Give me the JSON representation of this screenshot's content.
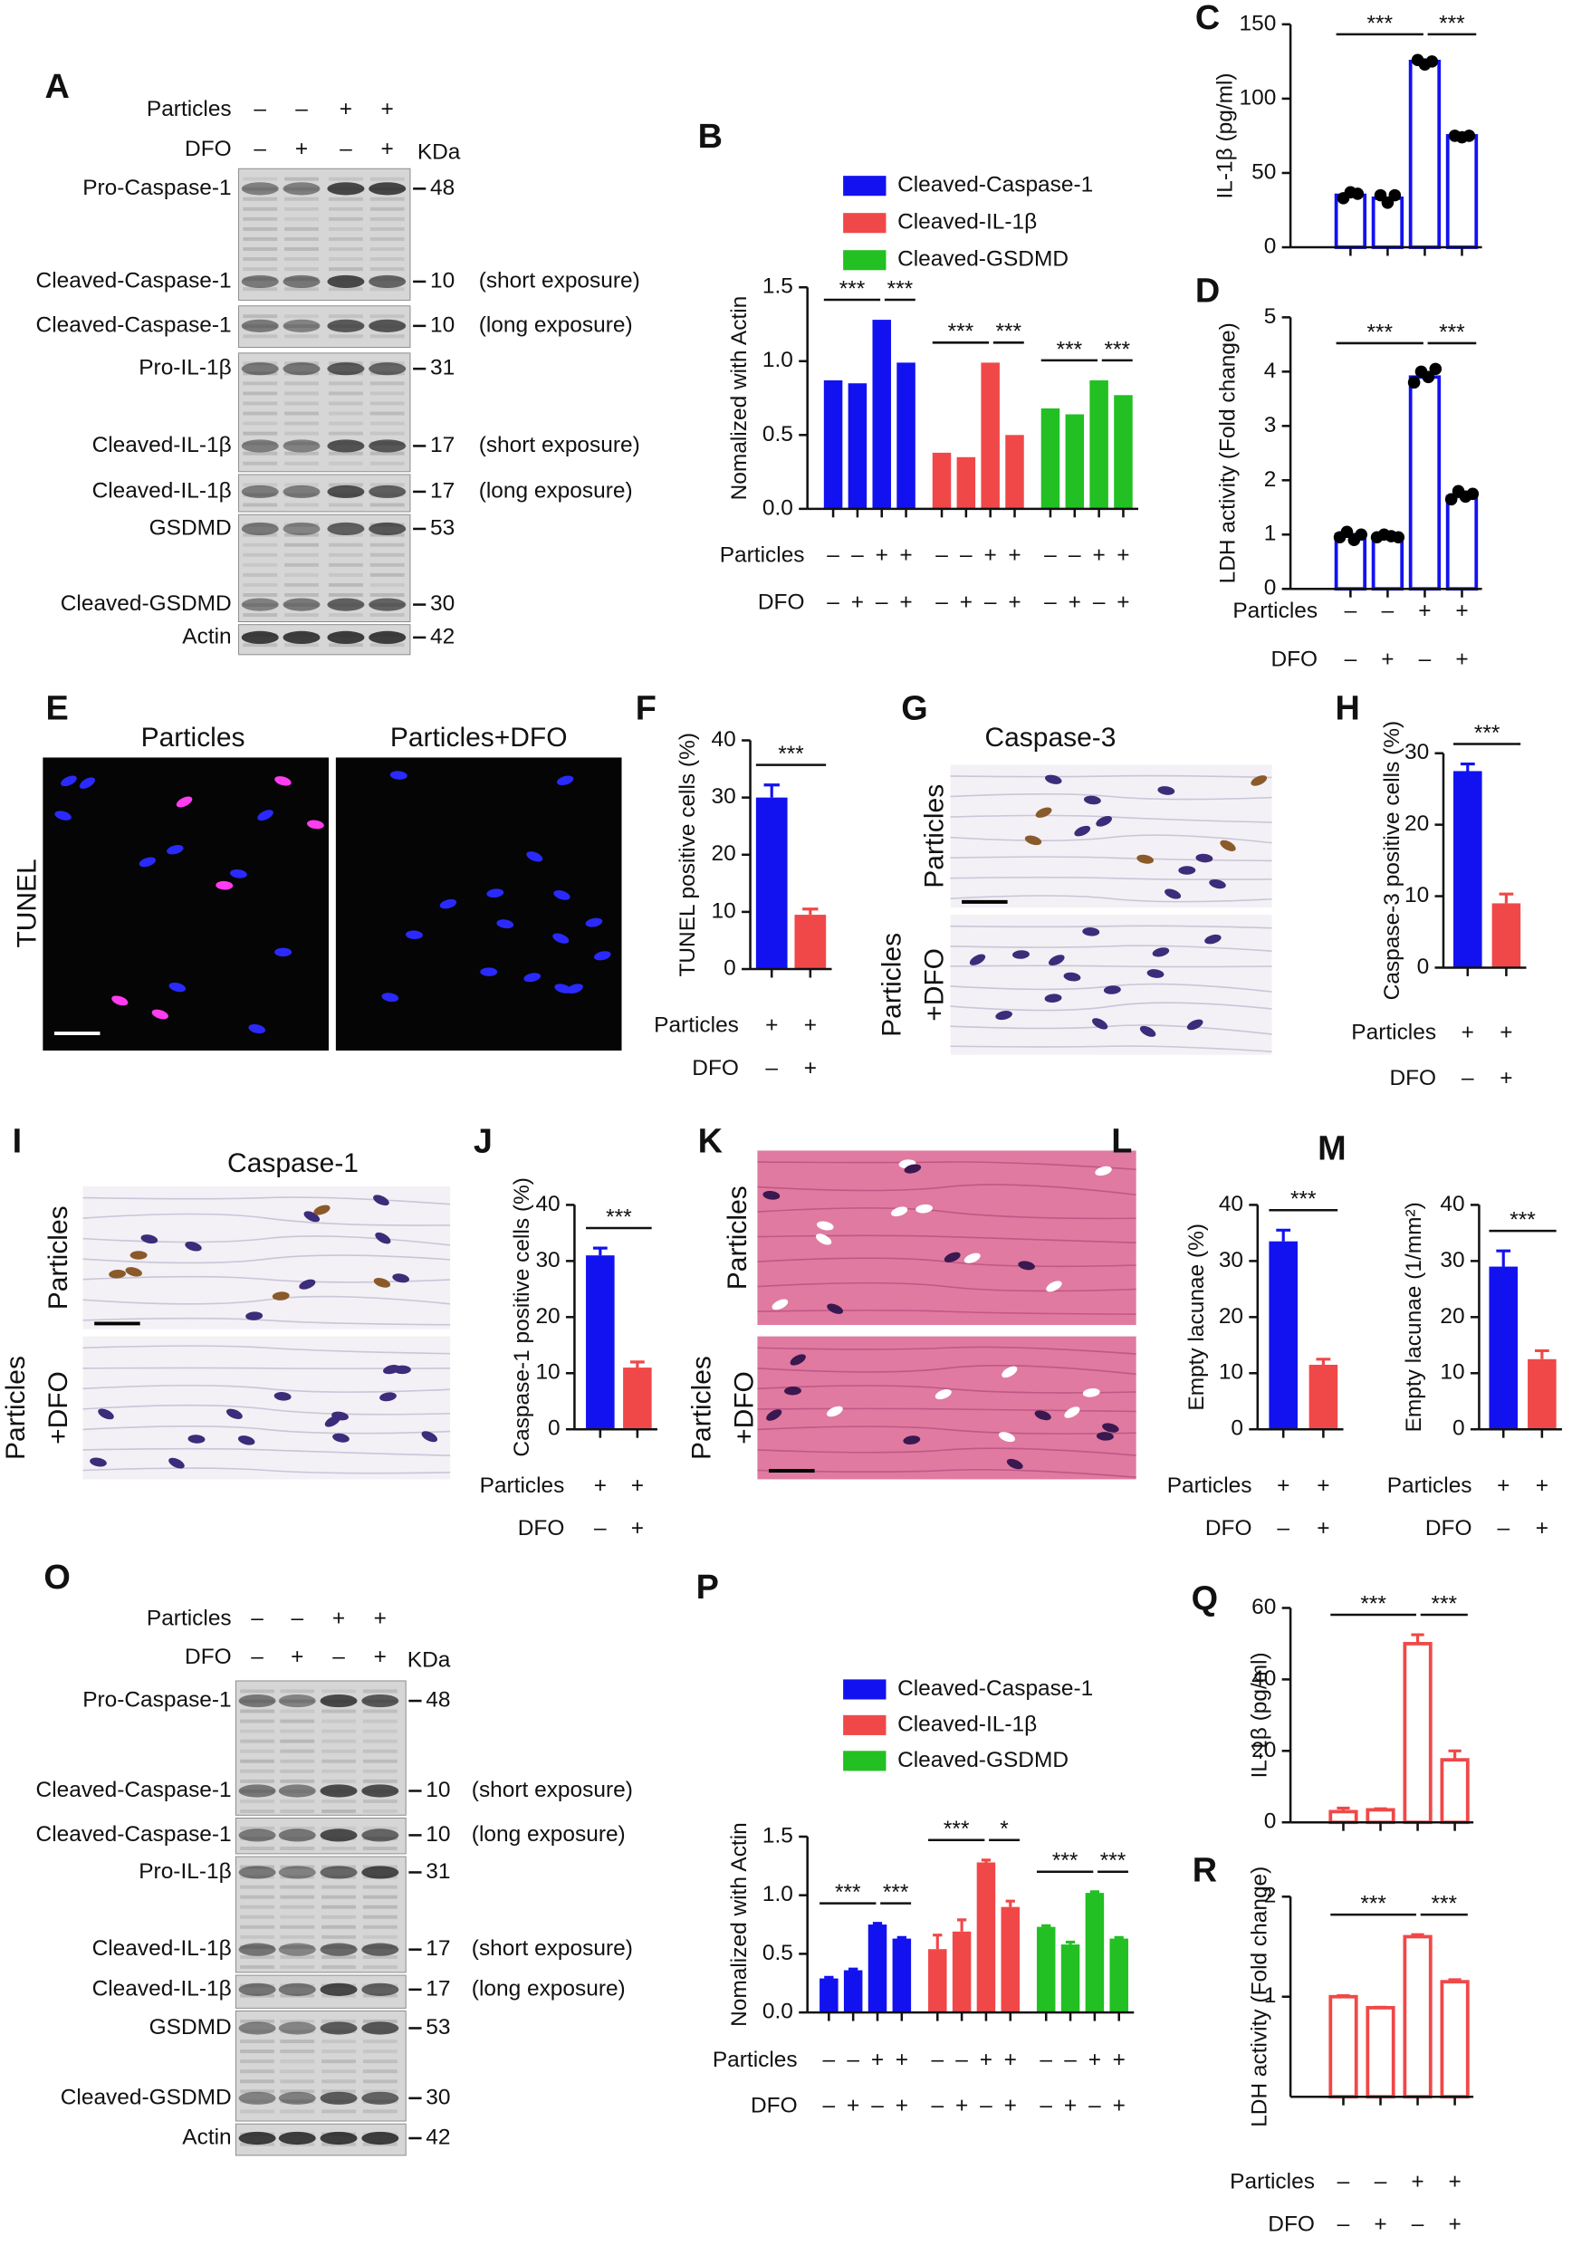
{
  "blots": [
    {
      "letter": "A",
      "condition_rows": [
        {
          "label": "Particles",
          "signs": [
            "–",
            "–",
            "+",
            "+"
          ]
        },
        {
          "label": "DFO",
          "signs": [
            "–",
            "+",
            "–",
            "+"
          ]
        }
      ],
      "unit": "KDa",
      "bands": [
        {
          "label": "Pro-Caspase-1",
          "marker": "48"
        },
        {
          "label": "Cleaved-Caspase-1",
          "marker": "10",
          "note": "(short exposure)"
        },
        {
          "label": "Cleaved-Caspase-1",
          "marker": "10",
          "note": "(long exposure)"
        },
        {
          "label": "Pro-IL-1β",
          "marker": "31"
        },
        {
          "label": "Cleaved-IL-1β",
          "marker": "17",
          "note": "(short exposure)"
        },
        {
          "label": "Cleaved-IL-1β",
          "marker": "17",
          "note": "(long exposure)"
        },
        {
          "label": "GSDMD",
          "marker": "53"
        },
        {
          "label": "Cleaved-GSDMD",
          "marker": "30"
        },
        {
          "label": "Actin",
          "marker": "42"
        }
      ]
    },
    {
      "letter": "O",
      "condition_rows": [
        {
          "label": "Particles",
          "signs": [
            "–",
            "–",
            "+",
            "+"
          ]
        },
        {
          "label": "DFO",
          "signs": [
            "–",
            "+",
            "–",
            "+"
          ]
        }
      ],
      "unit": "KDa",
      "bands": [
        {
          "label": "Pro-Caspase-1",
          "marker": "48"
        },
        {
          "label": "Cleaved-Caspase-1",
          "marker": "10",
          "note": "(short exposure)"
        },
        {
          "label": "Cleaved-Caspase-1",
          "marker": "10",
          "note": "(long exposure)"
        },
        {
          "label": "Pro-IL-1β",
          "marker": "31"
        },
        {
          "label": "Cleaved-IL-1β",
          "marker": "17",
          "note": "(short exposure)"
        },
        {
          "label": "Cleaved-IL-1β",
          "marker": "17",
          "note": "(long exposure)"
        },
        {
          "label": "GSDMD",
          "marker": "53"
        },
        {
          "label": "Cleaved-GSDMD",
          "marker": "30"
        },
        {
          "label": "Actin",
          "marker": "42"
        }
      ]
    }
  ],
  "micrographs": [
    {
      "letter": "E",
      "columns": [
        "Particles",
        "Particles+DFO"
      ],
      "stain": "TUNEL"
    },
    {
      "letter": "G",
      "title": "Caspase-3",
      "rows": [
        [
          "Particles"
        ],
        [
          "Particles",
          "+DFO"
        ]
      ]
    },
    {
      "letter": "I",
      "title": "Caspase-1",
      "rows": [
        [
          "Particles"
        ],
        [
          "Particles",
          "+DFO"
        ]
      ]
    },
    {
      "letter": "K",
      "rows": [
        [
          "Particles"
        ],
        [
          "Particles",
          "+DFO"
        ]
      ]
    }
  ],
  "chart_data": [
    {
      "letter": "B",
      "type": "bar",
      "ylabel": "Nomalized with Actin",
      "ylim": [
        0,
        1.5
      ],
      "yticks": [
        {
          "value": 0,
          "label": "0.0"
        },
        0.5,
        {
          "value": 1,
          "label": "1.0"
        },
        1.5
      ],
      "series": [
        {
          "name": "Cleaved-Caspase-1",
          "color": "#1212f0",
          "values": [
            0.87,
            0.85,
            1.28,
            0.99
          ],
          "annotations": [
            "***",
            "***"
          ]
        },
        {
          "name": "Cleaved-IL-1β",
          "color": "#f04848",
          "values": [
            0.38,
            0.35,
            0.99,
            0.5
          ],
          "annotations": [
            "***",
            "***"
          ]
        },
        {
          "name": "Cleaved-GSDMD",
          "color": "#22c022",
          "values": [
            0.68,
            0.64,
            0.87,
            0.77
          ],
          "annotations": [
            "***",
            "***"
          ]
        }
      ],
      "condition_rows": [
        {
          "label": "Particles",
          "signs": [
            "–",
            "–",
            "+",
            "+"
          ]
        },
        {
          "label": "DFO",
          "signs": [
            "–",
            "+",
            "–",
            "+"
          ]
        }
      ]
    },
    {
      "letter": "C",
      "type": "bar",
      "style": "outline",
      "color": "#1212f0",
      "ylabel": "IL-1β (pg/ml)",
      "ylim": [
        0,
        150
      ],
      "yticks": [
        0,
        50,
        100,
        150
      ],
      "values": [
        35,
        33,
        125,
        75
      ],
      "points": [
        [
          33,
          37,
          36
        ],
        [
          35,
          30,
          35
        ],
        [
          126,
          123,
          125
        ],
        [
          75,
          74,
          75
        ]
      ],
      "annotations": [
        "***",
        "***"
      ]
    },
    {
      "letter": "D",
      "type": "bar",
      "style": "outline",
      "color": "#1212f0",
      "ylabel": "LDH activity (Fold change)",
      "ylim": [
        0,
        5
      ],
      "yticks": [
        0,
        1,
        2,
        3,
        4,
        5
      ],
      "values": [
        1.0,
        0.97,
        3.9,
        1.7
      ],
      "points": [
        [
          0.95,
          1.05,
          0.9,
          1.0
        ],
        [
          0.95,
          1.0,
          0.97,
          0.95
        ],
        [
          3.8,
          4.0,
          3.9,
          4.05
        ],
        [
          1.65,
          1.8,
          1.7,
          1.75
        ]
      ],
      "annotations": [
        "***",
        "***"
      ],
      "condition_rows": [
        {
          "label": "Particles",
          "signs": [
            "–",
            "–",
            "+",
            "+"
          ]
        },
        {
          "label": "DFO",
          "signs": [
            "–",
            "+",
            "–",
            "+"
          ]
        }
      ]
    },
    {
      "letter": "F",
      "type": "bar",
      "ylabel": "TUNEL positive cells (%)",
      "colors": [
        "#1212f0",
        "#f04848"
      ],
      "ylim": [
        0,
        40
      ],
      "yticks": [
        0,
        10,
        20,
        30,
        40
      ],
      "values": [
        30,
        9.5
      ],
      "errors": [
        2.2,
        1.0
      ],
      "annotations": [
        "***"
      ],
      "condition_rows": [
        {
          "label": "Particles",
          "signs": [
            "+",
            "+"
          ]
        },
        {
          "label": "DFO",
          "signs": [
            "–",
            "+"
          ]
        }
      ]
    },
    {
      "letter": "H",
      "type": "bar",
      "ylabel": "Caspase-3 positive cells (%)",
      "colors": [
        "#1212f0",
        "#f04848"
      ],
      "ylim": [
        0,
        30
      ],
      "yticks": [
        0,
        10,
        20,
        30
      ],
      "values": [
        27.5,
        9
      ],
      "errors": [
        1.0,
        1.3
      ],
      "annotations": [
        "***"
      ],
      "condition_rows": [
        {
          "label": "Particles",
          "signs": [
            "+",
            "+"
          ]
        },
        {
          "label": "DFO",
          "signs": [
            "–",
            "+"
          ]
        }
      ]
    },
    {
      "letter": "J",
      "type": "bar",
      "ylabel": "Caspase-1 positive cells (%)",
      "colors": [
        "#1212f0",
        "#f04848"
      ],
      "ylim": [
        0,
        40
      ],
      "yticks": [
        0,
        10,
        20,
        30,
        40
      ],
      "values": [
        31,
        11
      ],
      "errors": [
        1.3,
        1.0
      ],
      "annotations": [
        "***"
      ],
      "condition_rows": [
        {
          "label": "Particles",
          "signs": [
            "+",
            "+"
          ]
        },
        {
          "label": "DFO",
          "signs": [
            "–",
            "+"
          ]
        }
      ]
    },
    {
      "letter": "L",
      "type": "bar",
      "ylabel": "Empty lacunae (%)",
      "colors": [
        "#1212f0",
        "#f04848"
      ],
      "ylim": [
        0,
        40
      ],
      "yticks": [
        0,
        10,
        20,
        30,
        40
      ],
      "values": [
        33.5,
        11.5
      ],
      "errors": [
        2.0,
        1.0
      ],
      "annotations": [
        "***"
      ],
      "condition_rows": [
        {
          "label": "Particles",
          "signs": [
            "+",
            "+"
          ]
        },
        {
          "label": "DFO",
          "signs": [
            "–",
            "+"
          ]
        }
      ]
    },
    {
      "letter": "M",
      "type": "bar",
      "ylabel": "Empty lacunae (1/mm²)",
      "colors": [
        "#1212f0",
        "#f04848"
      ],
      "ylim": [
        0,
        40
      ],
      "yticks": [
        0,
        10,
        20,
        30,
        40
      ],
      "values": [
        29,
        12.5
      ],
      "errors": [
        2.8,
        1.5
      ],
      "annotations": [
        "***"
      ],
      "condition_rows": [
        {
          "label": "Particles",
          "signs": [
            "+",
            "+"
          ]
        },
        {
          "label": "DFO",
          "signs": [
            "–",
            "+"
          ]
        }
      ]
    },
    {
      "letter": "P",
      "type": "bar",
      "ylabel": "Nomalized with Actin",
      "ylim": [
        0,
        1.5
      ],
      "yticks": [
        {
          "value": 0,
          "label": "0.0"
        },
        0.5,
        {
          "value": 1,
          "label": "1.0"
        },
        1.5
      ],
      "series": [
        {
          "name": "Cleaved-Caspase-1",
          "color": "#1212f0",
          "values": [
            0.29,
            0.36,
            0.75,
            0.63
          ],
          "errors": [
            0.01,
            0.01,
            0.01,
            0.01
          ],
          "annotations": [
            "***",
            "***"
          ]
        },
        {
          "name": "Cleaved-IL-1β",
          "color": "#f04848",
          "values": [
            0.54,
            0.69,
            1.28,
            0.9
          ],
          "errors": [
            0.12,
            0.1,
            0.02,
            0.05
          ],
          "annotations": [
            "***",
            "*"
          ]
        },
        {
          "name": "Cleaved-GSDMD",
          "color": "#22c022",
          "values": [
            0.73,
            0.58,
            1.02,
            0.63
          ],
          "errors": [
            0.01,
            0.02,
            0.01,
            0.01
          ],
          "annotations": [
            "***",
            "***"
          ]
        }
      ],
      "condition_rows": [
        {
          "label": "Particles",
          "signs": [
            "–",
            "–",
            "+",
            "+"
          ]
        },
        {
          "label": "DFO",
          "signs": [
            "–",
            "+",
            "–",
            "+"
          ]
        }
      ]
    },
    {
      "letter": "Q",
      "type": "bar",
      "style": "outline",
      "color": "#f04848",
      "ylabel": "IL-1β (pg/ml)",
      "ylim": [
        0,
        60
      ],
      "yticks": [
        0,
        20,
        40,
        60
      ],
      "values": [
        3,
        3.5,
        50,
        17.5
      ],
      "errors": [
        1.0,
        0.3,
        2.5,
        2.5
      ],
      "annotations": [
        "***",
        "***"
      ]
    },
    {
      "letter": "R",
      "type": "bar",
      "style": "outline",
      "color": "#f04848",
      "ylabel": "LDH activity (Fold change)",
      "ylim": [
        0,
        2
      ],
      "yticks": [
        1,
        2
      ],
      "values": [
        1.0,
        0.89,
        1.6,
        1.15
      ],
      "errors": [
        0.01,
        0.005,
        0.02,
        0.02
      ],
      "annotations": [
        "***",
        "***"
      ],
      "condition_rows": [
        {
          "label": "Particles",
          "signs": [
            "–",
            "–",
            "+",
            "+"
          ]
        },
        {
          "label": "DFO",
          "signs": [
            "–",
            "+",
            "–",
            "+"
          ]
        }
      ]
    }
  ]
}
